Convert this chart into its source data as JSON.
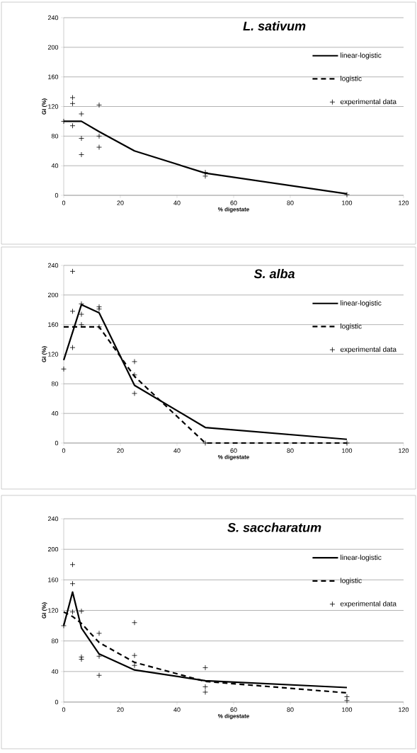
{
  "chart_data": [
    {
      "type": "line",
      "title": "L. sativum",
      "xlabel": "% digestate",
      "ylabel": "GI (%)",
      "xlim": [
        0,
        120
      ],
      "xticks": [
        0,
        20,
        40,
        60,
        80,
        100,
        120
      ],
      "ylim": [
        0,
        240
      ],
      "yticks": [
        0,
        40,
        80,
        120,
        160,
        200,
        240
      ],
      "grid": "y",
      "legend": "right",
      "series": [
        {
          "name": "linear-logistic",
          "color": "#000000",
          "line_style": "solid",
          "marker": "none",
          "x": [
            0,
            3.125,
            6.25,
            12.5,
            25,
            50,
            100
          ],
          "values": [
            100,
            100,
            100,
            86,
            60,
            30,
            2
          ]
        },
        {
          "name": "logistic",
          "color": "#000000",
          "line_style": "dashed",
          "marker": "none"
        },
        {
          "name": "experimental data",
          "type": "scatter",
          "color": "#000000",
          "marker": "cross",
          "x": [
            0,
            3.125,
            3.125,
            3.125,
            6.25,
            6.25,
            6.25,
            12.5,
            12.5,
            12.5,
            50,
            50,
            100
          ],
          "values": [
            100,
            132,
            124,
            94,
            110,
            77,
            55,
            122,
            80,
            65,
            31,
            26,
            1
          ]
        }
      ]
    },
    {
      "type": "line",
      "title": "S. alba",
      "xlabel": "% digestate",
      "ylabel": "GI (%)",
      "xlim": [
        0,
        120
      ],
      "xticks": [
        0,
        20,
        40,
        60,
        80,
        100,
        120
      ],
      "ylim": [
        0,
        240
      ],
      "yticks": [
        0,
        40,
        80,
        120,
        160,
        200,
        240
      ],
      "grid": "y",
      "legend": "right",
      "series": [
        {
          "name": "linear-logistic",
          "color": "#000000",
          "line_style": "solid",
          "marker": "none",
          "x": [
            0,
            6.25,
            12.5,
            25,
            50,
            100
          ],
          "values": [
            112,
            187,
            176,
            78,
            21,
            5
          ]
        },
        {
          "name": "logistic",
          "color": "#000000",
          "line_style": "dashed",
          "marker": "none",
          "x": [
            0,
            3.125,
            6.25,
            12.5,
            25,
            50,
            100
          ],
          "values": [
            157,
            157,
            157,
            157,
            90,
            0,
            0
          ]
        },
        {
          "name": "experimental data",
          "type": "scatter",
          "color": "#000000",
          "marker": "cross",
          "x": [
            0,
            3.125,
            3.125,
            3.125,
            6.25,
            6.25,
            6.25,
            12.5,
            12.5,
            12.5,
            25,
            25,
            25,
            50,
            100
          ],
          "values": [
            100,
            232,
            178,
            129,
            188,
            174,
            160,
            184,
            181,
            157,
            110,
            92,
            67,
            0,
            0
          ]
        }
      ]
    },
    {
      "type": "line",
      "title": "S. saccharatum",
      "xlabel": "% digestate",
      "ylabel": "GI (%)",
      "xlim": [
        0,
        120
      ],
      "xticks": [
        0,
        20,
        40,
        60,
        80,
        100,
        120
      ],
      "ylim": [
        0,
        240
      ],
      "yticks": [
        0,
        40,
        80,
        120,
        160,
        200,
        240
      ],
      "grid": "y",
      "legend": "right",
      "series": [
        {
          "name": "linear-logistic",
          "color": "#000000",
          "line_style": "solid",
          "marker": "none",
          "x": [
            0,
            3.125,
            6.25,
            12.5,
            25,
            50,
            100
          ],
          "values": [
            100,
            144,
            97,
            63,
            42,
            28,
            19
          ]
        },
        {
          "name": "logistic",
          "color": "#000000",
          "line_style": "dashed",
          "marker": "none",
          "x": [
            0,
            3.125,
            6.25,
            12.5,
            25,
            50,
            100
          ],
          "values": [
            118,
            112,
            103,
            78,
            52,
            27,
            12
          ]
        },
        {
          "name": "experimental data",
          "type": "scatter",
          "color": "#000000",
          "marker": "cross",
          "x": [
            0,
            3.125,
            3.125,
            3.125,
            6.25,
            6.25,
            6.25,
            12.5,
            12.5,
            12.5,
            25,
            25,
            25,
            50,
            50,
            50,
            100,
            100
          ],
          "values": [
            100,
            180,
            155,
            118,
            119,
            59,
            56,
            90,
            60,
            35,
            104,
            61,
            48,
            45,
            20,
            13,
            7,
            2
          ]
        }
      ]
    }
  ]
}
